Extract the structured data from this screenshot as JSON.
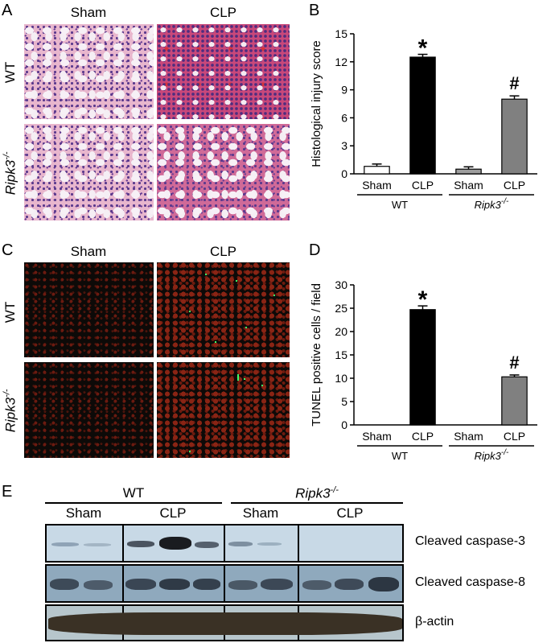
{
  "panels": {
    "A": {
      "letter": "A",
      "columns": [
        "Sham",
        "CLP"
      ],
      "rows": [
        "WT",
        "Ripk3-/-"
      ]
    },
    "B": {
      "letter": "B"
    },
    "C": {
      "letter": "C",
      "columns": [
        "Sham",
        "CLP"
      ],
      "rows": [
        "WT",
        "Ripk3-/-"
      ]
    },
    "D": {
      "letter": "D"
    },
    "E": {
      "letter": "E",
      "groups": [
        "WT",
        "Ripk3-/-"
      ],
      "subgroups": [
        "Sham",
        "CLP",
        "Sham",
        "CLP"
      ],
      "bands": [
        "Cleaved caspase-3",
        "Cleaved caspase-8",
        "β-actin"
      ]
    }
  },
  "chart_data": [
    {
      "type": "bar",
      "panel": "B",
      "categories": [
        "Sham",
        "CLP",
        "Sham",
        "CLP"
      ],
      "groups": [
        "WT",
        "Ripk3-/-"
      ],
      "values": [
        0.8,
        12.5,
        0.5,
        8.0
      ],
      "errors": [
        0.25,
        0.3,
        0.25,
        0.35
      ],
      "bar_colors": [
        "#ffffff",
        "#000000",
        "#9e9e9e",
        "#808080"
      ],
      "annotations": [
        "",
        "*",
        "",
        "#"
      ],
      "ylabel": "Histological injury score",
      "yticks": [
        "0",
        "3",
        "6",
        "9",
        "12",
        "15"
      ],
      "ylim": [
        0,
        15
      ]
    },
    {
      "type": "bar",
      "panel": "D",
      "categories": [
        "Sham",
        "CLP",
        "Sham",
        "CLP"
      ],
      "groups": [
        "WT",
        "Ripk3-/-"
      ],
      "values": [
        0,
        24.7,
        0,
        10.3
      ],
      "errors": [
        0,
        0.8,
        0,
        0.4
      ],
      "bar_colors": [
        "#ffffff",
        "#000000",
        "#9e9e9e",
        "#808080"
      ],
      "annotations": [
        "",
        "*",
        "",
        "#"
      ],
      "ylabel": "TUNEL positive cells / field",
      "yticks": [
        "0",
        "5",
        "10",
        "15",
        "20",
        "25",
        "30"
      ],
      "ylim": [
        0,
        30
      ]
    }
  ]
}
